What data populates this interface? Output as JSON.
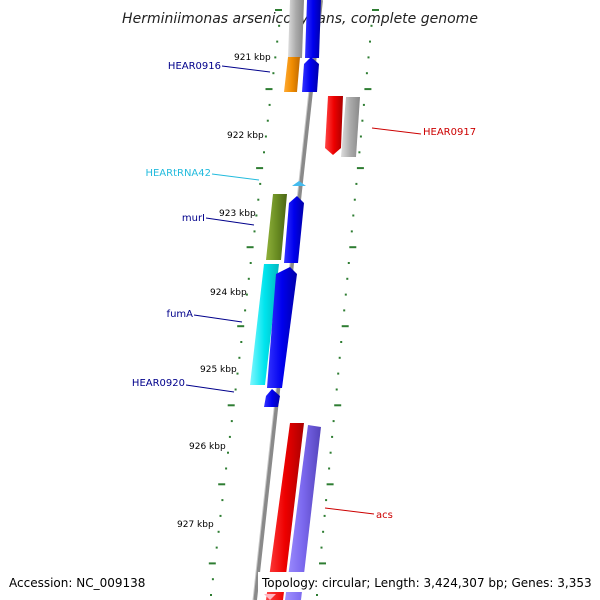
{
  "title": "Herminiimonas arsenicoxydans, complete genome",
  "footer": {
    "accession": "Accession: NC_009138",
    "topology": "Topology: circular; Length: 3,424,307 bp; Genes: 3,353"
  },
  "scale_labels": [
    "921 kbp",
    "922 kbp",
    "923 kbp",
    "924 kbp",
    "925 kbp",
    "926 kbp",
    "927 kbp"
  ],
  "gene_labels": [
    {
      "text": "HEAR0916",
      "color": "#00008B"
    },
    {
      "text": "HEAR0917",
      "color": "#CC0000"
    },
    {
      "text": "HEARtRNA42",
      "color": "#22BBDD"
    },
    {
      "text": "murI",
      "color": "#00008B"
    },
    {
      "text": "fumA",
      "color": "#00008B"
    },
    {
      "text": "HEAR0920",
      "color": "#00008B"
    },
    {
      "text": "acs",
      "color": "#CC0000"
    }
  ],
  "colors": {
    "backbone": "#888888",
    "tick": "#2E7D32",
    "blue_gene": "#0000EE",
    "red_gene": "#EE0000",
    "grey_gene": "#AAAAAA",
    "orange_gene": "#F08C00",
    "olive_gene": "#6B8E23",
    "cyan_gene": "#00E5EE",
    "purple_gene": "#7B68EE",
    "trna_gene": "#44BBEE",
    "pink_gene": "#FFB6C1"
  }
}
